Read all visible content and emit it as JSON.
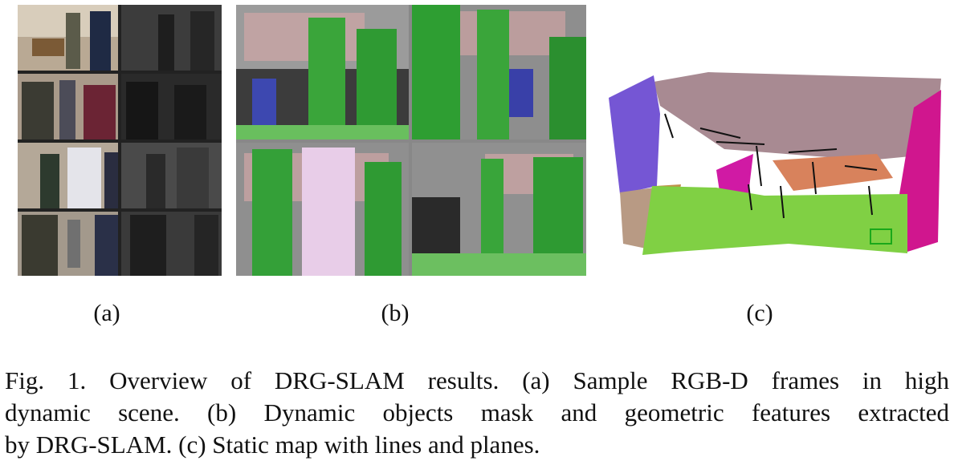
{
  "figure": {
    "panel_labels": [
      "(a)",
      "(b)",
      "(c)"
    ],
    "caption_lines": [
      "Fig. 1.   Overview of DRG-SLAM results. (a) Sample RGB-D frames in high",
      "dynamic scene. (b) Dynamic objects mask and geometric features extracted",
      "by DRG-SLAM. (c) Static map with lines and planes."
    ]
  }
}
